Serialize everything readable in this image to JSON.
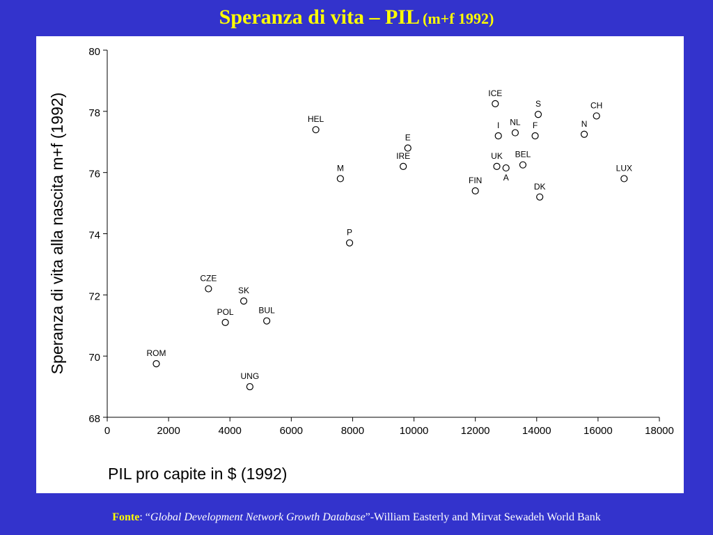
{
  "slide": {
    "title_main": "Speranza di vita – PIL",
    "title_sub": "(m+f 1992)",
    "source_label": "Fonte",
    "source_colon": ": “",
    "source_database": "Global Development Network Growth Database",
    "source_rest": "”-William Easterly and Mirvat Sewadeh World Bank"
  },
  "chart_data": {
    "type": "scatter",
    "title": "",
    "xlabel": "PIL pro capite in $ (1992)",
    "ylabel": "Speranza di vita alla nascita m+f (1992)",
    "xlim": [
      0,
      18000
    ],
    "ylim": [
      68,
      80
    ],
    "xticks": [
      0,
      2000,
      4000,
      6000,
      8000,
      10000,
      12000,
      14000,
      16000,
      18000
    ],
    "yticks": [
      68,
      70,
      72,
      74,
      76,
      78,
      80
    ],
    "grid": false,
    "marker": "open-circle",
    "points": [
      {
        "label": "ROM",
        "x": 1600,
        "y": 69.75
      },
      {
        "label": "CZE",
        "x": 3300,
        "y": 72.2
      },
      {
        "label": "POL",
        "x": 3850,
        "y": 71.1
      },
      {
        "label": "SK",
        "x": 4450,
        "y": 71.8
      },
      {
        "label": "UNG",
        "x": 4650,
        "y": 69.0
      },
      {
        "label": "BUL",
        "x": 5200,
        "y": 71.15
      },
      {
        "label": "HEL",
        "x": 6800,
        "y": 77.4
      },
      {
        "label": "M",
        "x": 7600,
        "y": 75.8
      },
      {
        "label": "P",
        "x": 7900,
        "y": 73.7
      },
      {
        "label": "IRE",
        "x": 9650,
        "y": 76.2
      },
      {
        "label": "E",
        "x": 9800,
        "y": 76.8
      },
      {
        "label": "FIN",
        "x": 12000,
        "y": 75.4
      },
      {
        "label": "ICE",
        "x": 12650,
        "y": 78.25
      },
      {
        "label": "I",
        "x": 12750,
        "y": 77.2
      },
      {
        "label": "UK",
        "x": 12700,
        "y": 76.2
      },
      {
        "label": "A",
        "x": 13000,
        "y": 76.15
      },
      {
        "label": "NL",
        "x": 13300,
        "y": 77.3
      },
      {
        "label": "BEL",
        "x": 13550,
        "y": 76.25
      },
      {
        "label": "F",
        "x": 13950,
        "y": 77.2
      },
      {
        "label": "S",
        "x": 14050,
        "y": 77.9
      },
      {
        "label": "DK",
        "x": 14100,
        "y": 75.2
      },
      {
        "label": "N",
        "x": 15550,
        "y": 77.25
      },
      {
        "label": "CH",
        "x": 15950,
        "y": 77.85
      },
      {
        "label": "LUX",
        "x": 16850,
        "y": 75.8
      }
    ]
  }
}
